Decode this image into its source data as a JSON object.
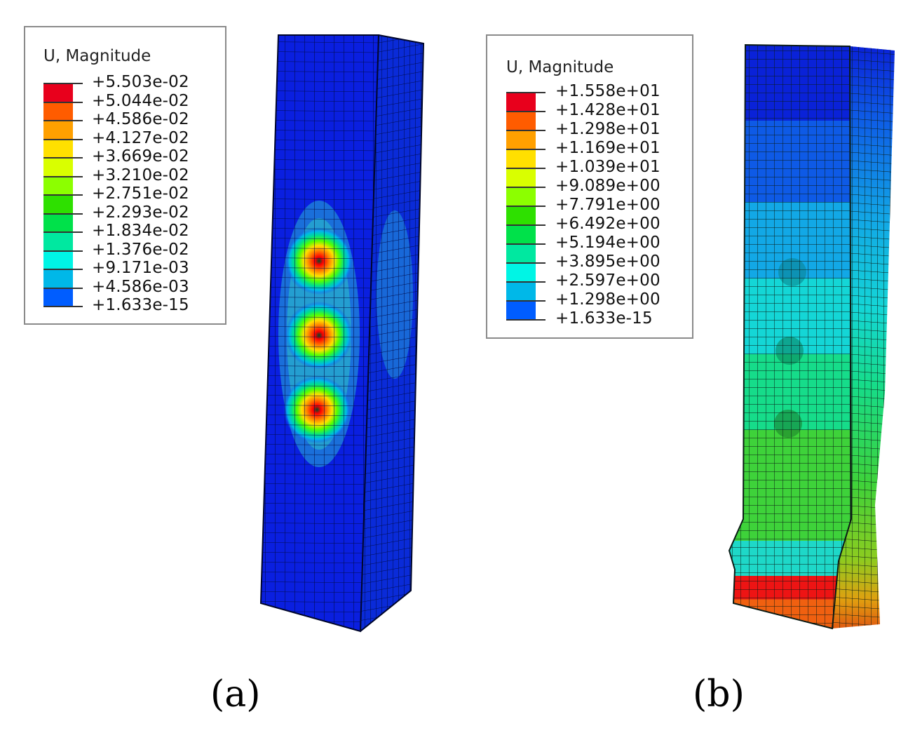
{
  "figure_a": {
    "legend": {
      "title": "U, Magnitude",
      "colors": [
        "#e8001c",
        "#ff5c00",
        "#ffa000",
        "#ffe000",
        "#d9ff00",
        "#8cff00",
        "#2ee000",
        "#00e14a",
        "#00e8a0",
        "#00f5e5",
        "#00b8e8",
        "#005dff",
        "#0010e8"
      ],
      "values": [
        "+5.503e-02",
        "+5.044e-02",
        "+4.586e-02",
        "+4.127e-02",
        "+3.669e-02",
        "+3.210e-02",
        "+2.751e-02",
        "+2.293e-02",
        "+1.834e-02",
        "+1.376e-02",
        "+9.171e-03",
        "+4.586e-03",
        "+1.633e-15"
      ]
    },
    "caption": "(a)"
  },
  "figure_b": {
    "legend": {
      "title": "U, Magnitude",
      "colors": [
        "#e8001c",
        "#ff5c00",
        "#ffa000",
        "#ffe000",
        "#d9ff00",
        "#8cff00",
        "#2ee000",
        "#00e14a",
        "#00e8a0",
        "#00f5e5",
        "#00b8e8",
        "#005dff",
        "#0010e8"
      ],
      "values": [
        "+1.558e+01",
        "+1.428e+01",
        "+1.298e+01",
        "+1.169e+01",
        "+1.039e+01",
        "+9.089e+00",
        "+7.791e+00",
        "+6.492e+00",
        "+5.194e+00",
        "+3.895e+00",
        "+2.597e+00",
        "+1.298e+00",
        "+1.633e-15"
      ]
    },
    "caption": "(b)"
  }
}
